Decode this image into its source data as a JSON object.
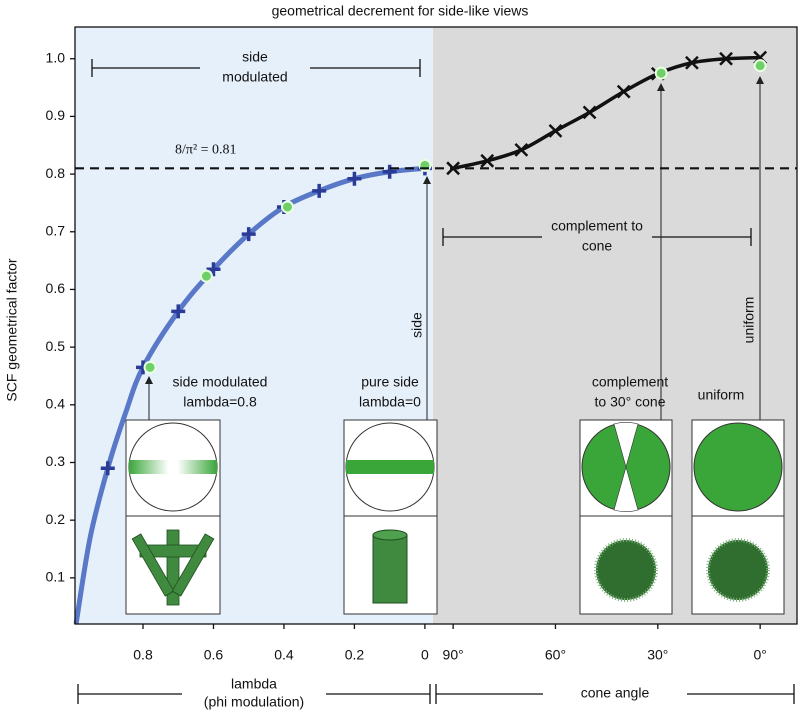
{
  "chart_data": {
    "type": "line",
    "title": "geometrical decrement for side-like views",
    "y_label": "SCF geometrical factor",
    "ylim": [
      0.02,
      1.055
    ],
    "yticks": [
      0.1,
      0.2,
      0.3,
      0.4,
      0.5,
      0.6,
      0.7,
      0.8,
      0.9,
      {
        "value": 1,
        "label": "1.0"
      }
    ],
    "reference_line": {
      "value": 0.81,
      "label": "8/π² = 0.81"
    },
    "panels": [
      {
        "background": "#e6f0fb",
        "xlim": [
          0.993,
          -0.023
        ],
        "xticks": [
          0.8,
          0.6,
          0.4,
          0.2,
          0
        ],
        "x_label": [
          "lambda",
          "(phi modulation)"
        ],
        "bracket": [
          "side",
          "modulated"
        ],
        "series": [
          {
            "color": "#5a78c8",
            "line": true,
            "marker": "none",
            "x": [
              0.99,
              0.95,
              0.9,
              0.85,
              0.8,
              0.7,
              0.6,
              0.5,
              0.4,
              0.3,
              0.2,
              0.1,
              0
            ],
            "values": [
              0.02,
              0.17,
              0.29,
              0.385,
              0.465,
              0.562,
              0.635,
              0.696,
              0.743,
              0.771,
              0.792,
              0.804,
              0.81
            ]
          },
          {
            "color": "#2b3c98",
            "line": false,
            "marker": "plus",
            "x": [
              0.9,
              0.8,
              0.7,
              0.6,
              0.5,
              0.4,
              0.3,
              0.2,
              0.1,
              0
            ],
            "values": [
              0.29,
              0.465,
              0.562,
              0.635,
              0.696,
              0.743,
              0.771,
              0.792,
              0.804,
              0.81
            ]
          },
          {
            "color": "#6fd06a",
            "line": false,
            "marker": "circle",
            "x": [
              0.78,
              0.62,
              0.39,
              0
            ],
            "values": [
              0.465,
              0.623,
              0.743,
              0.815
            ]
          }
        ],
        "insets": [
          [
            "side modulated",
            "lambda=0.8"
          ],
          [
            "pure side",
            "lambda=0"
          ]
        ],
        "arrow_labels": [
          "side"
        ]
      },
      {
        "background": "#dadada",
        "xlim": [
          95.9,
          -10.8
        ],
        "xticks": [
          {
            "value": 90,
            "label": "90°"
          },
          {
            "value": 60,
            "label": "60°"
          },
          {
            "value": 30,
            "label": "30°"
          },
          {
            "value": 0,
            "label": "0°"
          }
        ],
        "x_label": [
          "cone angle"
        ],
        "bracket": [
          "complement to",
          "cone"
        ],
        "series": [
          {
            "color": "#111111",
            "line": true,
            "marker": "x",
            "x": [
              90,
              80,
              70,
              60,
              50,
              40,
              30,
              20,
              10,
              0
            ],
            "values": [
              0.81,
              0.823,
              0.842,
              0.875,
              0.907,
              0.943,
              0.974,
              0.993,
              1.0,
              1.002
            ]
          },
          {
            "color": "#6fd06a",
            "line": false,
            "marker": "circle",
            "x": [
              29,
              0
            ],
            "values": [
              0.975,
              0.988
            ]
          }
        ],
        "insets": [
          [
            "complement",
            "to 30° cone"
          ],
          [
            "uniform"
          ]
        ],
        "arrow_labels": [
          "uniform"
        ]
      }
    ]
  }
}
